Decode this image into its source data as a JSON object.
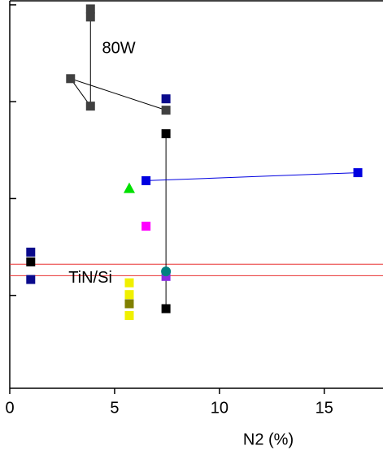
{
  "chart_data": {
    "type": "scatter",
    "x_label": "N2 (%)",
    "xlim": [
      0,
      17.8
    ],
    "xticks": [
      0,
      5,
      10,
      15
    ],
    "ylim": [
      1.1,
      11000
    ],
    "yticks": [
      10,
      100,
      1000,
      10000
    ],
    "y_log": true,
    "annotations": [
      {
        "text": "80W",
        "x": 4.4,
        "y": 3500
      },
      {
        "text": "TiN/Si",
        "x": 2.8,
        "y": 15
      }
    ],
    "hlines": [
      {
        "value": 21,
        "color": "#e83030"
      },
      {
        "value": 16,
        "color": "#e83030"
      }
    ],
    "series": [
      {
        "color": "#404040",
        "marker": "square",
        "line": true,
        "x": [
          3.85,
          3.85,
          3.85,
          2.9,
          7.45
        ],
        "values": [
          9080,
          7490,
          900,
          1730,
          817
        ]
      },
      {
        "color": "#000000",
        "marker": "square",
        "line": true,
        "x": [
          7.45,
          7.45
        ],
        "values": [
          467,
          7.3
        ]
      },
      {
        "color": "#000000",
        "marker": "square",
        "line": false,
        "x": [
          1
        ],
        "values": [
          22.2
        ]
      },
      {
        "color": "#0000e0",
        "marker": "square",
        "line": true,
        "x": [
          6.5,
          16.6
        ],
        "values": [
          153,
          185
        ]
      },
      {
        "color": "#0a0a8c",
        "marker": "square",
        "line": false,
        "x": [
          7.45,
          1,
          1
        ],
        "values": [
          1070,
          28,
          14.6
        ]
      },
      {
        "color": "#00e000",
        "marker": "triangle",
        "line": false,
        "x": [
          5.7
        ],
        "values": [
          128
        ]
      },
      {
        "color": "#ff00ff",
        "marker": "square",
        "line": false,
        "x": [
          6.5
        ],
        "values": [
          51.9
        ]
      },
      {
        "color": "#8a2be2",
        "marker": "square",
        "line": false,
        "x": [
          7.45
        ],
        "values": [
          15.7
        ]
      },
      {
        "color": "#008080",
        "marker": "circle",
        "line": false,
        "x": [
          7.45
        ],
        "values": [
          17.7
        ]
      },
      {
        "color": "#f0f000",
        "marker": "square",
        "line": false,
        "x": [
          5.7,
          5.7,
          5.7
        ],
        "values": [
          13.5,
          10.2,
          6.2
        ]
      },
      {
        "color": "#808000",
        "marker": "square",
        "line": false,
        "x": [
          5.7
        ],
        "values": [
          8.2
        ]
      }
    ]
  }
}
